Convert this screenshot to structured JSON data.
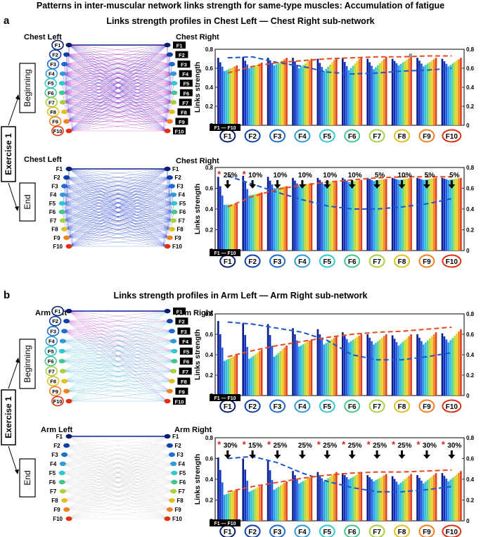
{
  "figure": {
    "title": "Patterns in inter-muscular network links strength for same-type muscles: Accumulation of  fatigue",
    "panel_a": {
      "letter": "a",
      "title": "Links strength profiles in Chest Left — Chest Right sub-network",
      "left_group": "Chest Left",
      "right_group": "Chest Right",
      "phase_beginning": "Beginning",
      "phase_end": "End",
      "exercise": "Exercise 1"
    },
    "panel_b": {
      "letter": "b",
      "title": "Links strength profiles in Arm Left — Arm Right sub-network",
      "left_group": "Arm Left",
      "right_group": "Arm Right",
      "phase_beginning": "Beginning",
      "phase_end": "End",
      "exercise": "Exercise 1"
    },
    "node_labels": [
      "F1",
      "F2",
      "F3",
      "F4",
      "F5",
      "F6",
      "F7",
      "F8",
      "F9",
      "F10"
    ],
    "node_colors": [
      "#0a1e6e",
      "#1040a8",
      "#1e6ad0",
      "#2e9ad8",
      "#30c8cc",
      "#40c890",
      "#a8d040",
      "#e0c020",
      "#f08020",
      "#e03010"
    ],
    "range_label": "F1 — F10",
    "ylabel": "Links strength",
    "hash_mark": "#",
    "star": "*"
  },
  "chart_data": [
    {
      "id": "chest-beginning",
      "type": "bar",
      "categories": [
        "F1",
        "F2",
        "F3",
        "F4",
        "F5",
        "F6",
        "F7",
        "F8",
        "F9",
        "F10"
      ],
      "ylabel": "Links strength",
      "ylim": [
        0,
        0.8
      ],
      "yticks": [
        "0",
        "0.2",
        "0.4",
        "0.6",
        "0.8"
      ],
      "y2ticks": [
        "0",
        "0.2",
        "0.4",
        "0.6",
        "0.8"
      ],
      "first_bar": [
        0.71,
        0.72,
        0.71,
        0.71,
        0.7,
        0.71,
        0.7,
        0.7,
        0.71,
        0.7
      ],
      "min_bar": [
        0.57,
        0.6,
        0.63,
        0.6,
        0.57,
        0.58,
        0.59,
        0.63,
        0.62,
        0.62
      ],
      "last_bar": [
        0.63,
        0.66,
        0.71,
        0.7,
        0.71,
        0.72,
        0.72,
        0.72,
        0.71,
        0.71
      ],
      "blue_trend": [
        0.71,
        0.72,
        0.66,
        0.62,
        0.56,
        0.54,
        0.55,
        0.57,
        0.58,
        0.6
      ],
      "red_trend": [
        0.55,
        0.62,
        0.66,
        0.68,
        0.7,
        0.71,
        0.72,
        0.72,
        0.73,
        0.73
      ],
      "annotations": []
    },
    {
      "id": "chest-end",
      "type": "bar",
      "categories": [
        "F1",
        "F2",
        "F3",
        "F4",
        "F5",
        "F6",
        "F7",
        "F8",
        "F9",
        "F10"
      ],
      "ylabel": "Links strength",
      "ylim": [
        0,
        0.8
      ],
      "yticks": [
        "0",
        "0.2",
        "0.4",
        "0.6",
        "0.8"
      ],
      "y2ticks": [
        "0",
        "0.2",
        "0.4",
        "0.6",
        "0.8"
      ],
      "first_bar": [
        0.71,
        0.72,
        0.71,
        0.7,
        0.7,
        0.7,
        0.7,
        0.7,
        0.7,
        0.7
      ],
      "min_bar": [
        0.44,
        0.53,
        0.6,
        0.62,
        0.64,
        0.66,
        0.67,
        0.68,
        0.68,
        0.68
      ],
      "last_bar": [
        0.45,
        0.56,
        0.62,
        0.65,
        0.67,
        0.68,
        0.69,
        0.7,
        0.7,
        0.7
      ],
      "blue_trend": [
        0.72,
        0.64,
        0.56,
        0.49,
        0.43,
        0.4,
        0.4,
        0.42,
        0.45,
        0.5
      ],
      "red_trend": [
        0.42,
        0.52,
        0.59,
        0.63,
        0.66,
        0.68,
        0.7,
        0.71,
        0.71,
        0.71
      ],
      "annotations": [
        {
          "label": "25%",
          "star": true
        },
        {
          "label": "10%",
          "star": true
        },
        {
          "label": "10%",
          "star": false
        },
        {
          "label": "10%",
          "star": false
        },
        {
          "label": "10%",
          "star": false
        },
        {
          "label": "10%",
          "star": false
        },
        {
          "label": "5%",
          "star": false
        },
        {
          "label": "10%",
          "star": false
        },
        {
          "label": "5%",
          "star": false
        },
        {
          "label": "5%",
          "star": false
        }
      ]
    },
    {
      "id": "arm-beginning",
      "type": "bar",
      "categories": [
        "F1",
        "F2",
        "F3",
        "F4",
        "F5",
        "F6",
        "F7",
        "F8",
        "F9",
        "F10"
      ],
      "ylabel": "Links strength",
      "ylim": [
        0,
        0.8
      ],
      "yticks": [
        "0",
        "0.2",
        "0.4",
        "0.6",
        "0.8"
      ],
      "y2ticks": [
        "0",
        "0.2",
        "0.4",
        "0.6",
        "0.8"
      ],
      "first_bar": [
        0.73,
        0.71,
        0.7,
        0.66,
        0.65,
        0.62,
        0.6,
        0.59,
        0.6,
        0.61
      ],
      "min_bar": [
        0.34,
        0.36,
        0.38,
        0.48,
        0.5,
        0.52,
        0.5,
        0.49,
        0.5,
        0.52
      ],
      "last_bar": [
        0.4,
        0.45,
        0.49,
        0.55,
        0.58,
        0.6,
        0.6,
        0.6,
        0.62,
        0.65
      ],
      "blue_trend": [
        0.72,
        0.7,
        0.66,
        0.62,
        0.54,
        0.4,
        0.35,
        0.35,
        0.38,
        0.42
      ],
      "red_trend": [
        0.38,
        0.44,
        0.49,
        0.53,
        0.57,
        0.6,
        0.62,
        0.63,
        0.65,
        0.67
      ],
      "annotations": []
    },
    {
      "id": "arm-end",
      "type": "bar",
      "categories": [
        "F1",
        "F2",
        "F3",
        "F4",
        "F5",
        "F6",
        "F7",
        "F8",
        "F9",
        "F10"
      ],
      "ylabel": "Links strength",
      "ylim": [
        0,
        0.8
      ],
      "yticks": [
        "0",
        "0.2",
        "0.4",
        "0.6",
        "0.8"
      ],
      "y2ticks": [
        "0",
        "0.2",
        "0.4",
        "0.6",
        "0.8"
      ],
      "first_bar": [
        0.61,
        0.6,
        0.58,
        0.48,
        0.47,
        0.46,
        0.44,
        0.43,
        0.44,
        0.46
      ],
      "min_bar": [
        0.25,
        0.28,
        0.3,
        0.36,
        0.38,
        0.4,
        0.38,
        0.35,
        0.36,
        0.38
      ],
      "last_bar": [
        0.3,
        0.34,
        0.38,
        0.43,
        0.47,
        0.47,
        0.45,
        0.45,
        0.46,
        0.48
      ],
      "blue_trend": [
        0.6,
        0.62,
        0.56,
        0.46,
        0.38,
        0.32,
        0.28,
        0.28,
        0.3,
        0.33
      ],
      "red_trend": [
        0.28,
        0.33,
        0.37,
        0.41,
        0.44,
        0.46,
        0.47,
        0.47,
        0.48,
        0.49
      ],
      "annotations": [
        {
          "label": "30%",
          "star": true
        },
        {
          "label": "15%",
          "star": true
        },
        {
          "label": "25%",
          "star": true
        },
        {
          "label": "25%",
          "star": false
        },
        {
          "label": "25%",
          "star": true
        },
        {
          "label": "25%",
          "star": true
        },
        {
          "label": "25%",
          "star": true
        },
        {
          "label": "25%",
          "star": true
        },
        {
          "label": "30%",
          "star": true
        },
        {
          "label": "30%",
          "star": true
        }
      ]
    }
  ],
  "networks": [
    {
      "id": "chest-beginning",
      "style": "dense-purple",
      "right_labels_boxed": true
    },
    {
      "id": "chest-end",
      "style": "blue",
      "right_labels_boxed": false
    },
    {
      "id": "arm-beginning",
      "style": "mixed",
      "right_labels_boxed": true
    },
    {
      "id": "arm-end",
      "style": "faint",
      "right_labels_boxed": false
    }
  ]
}
